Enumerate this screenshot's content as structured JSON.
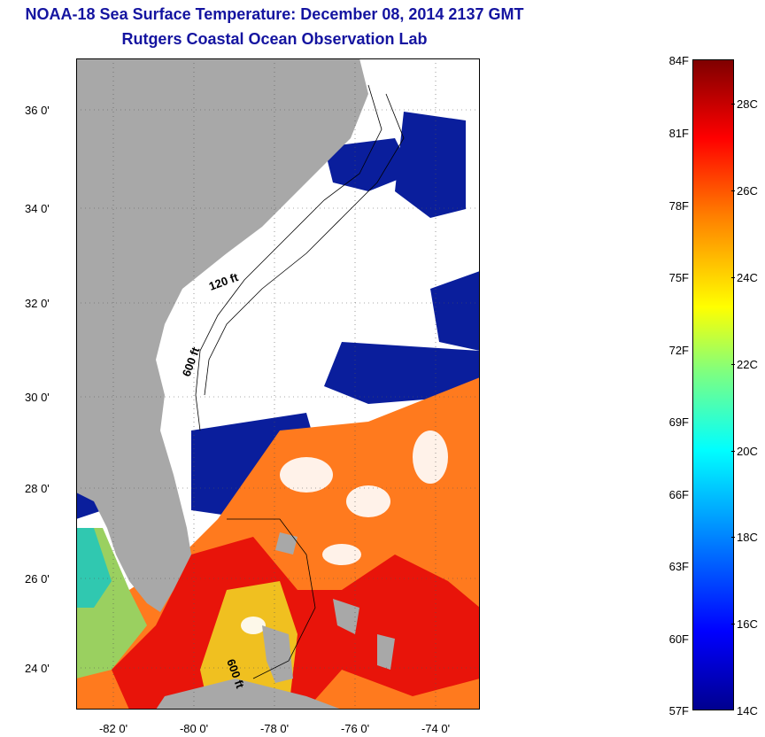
{
  "title_line1": "NOAA-18 Sea Surface Temperature:  December 08, 2014 2137 GMT",
  "title_line2": "Rutgers Coastal Ocean Observation Lab",
  "map": {
    "latitude_labels": [
      "36 0'",
      "34 0'",
      "32 0'",
      "30 0'",
      "28 0'",
      "26 0'",
      "24 0'"
    ],
    "longitude_labels": [
      "-82 0'",
      "-80 0'",
      "-78 0'",
      "-76 0'",
      "-74 0'"
    ],
    "contour_labels": [
      "120 ft",
      "600 ft",
      "600 ft"
    ],
    "colors": {
      "land": "#a8a8a8",
      "cloud": "#ffffff",
      "cold": "#0a1e9c",
      "warm": "#ff5a1e",
      "hot": "#e8140a"
    }
  },
  "colorbar": {
    "fahrenheit_labels": [
      "84F",
      "81F",
      "78F",
      "75F",
      "72F",
      "69F",
      "66F",
      "63F",
      "60F",
      "57F"
    ],
    "celsius_labels": [
      "28C",
      "26C",
      "24C",
      "22C",
      "20C",
      "18C",
      "16C",
      "14C"
    ]
  }
}
